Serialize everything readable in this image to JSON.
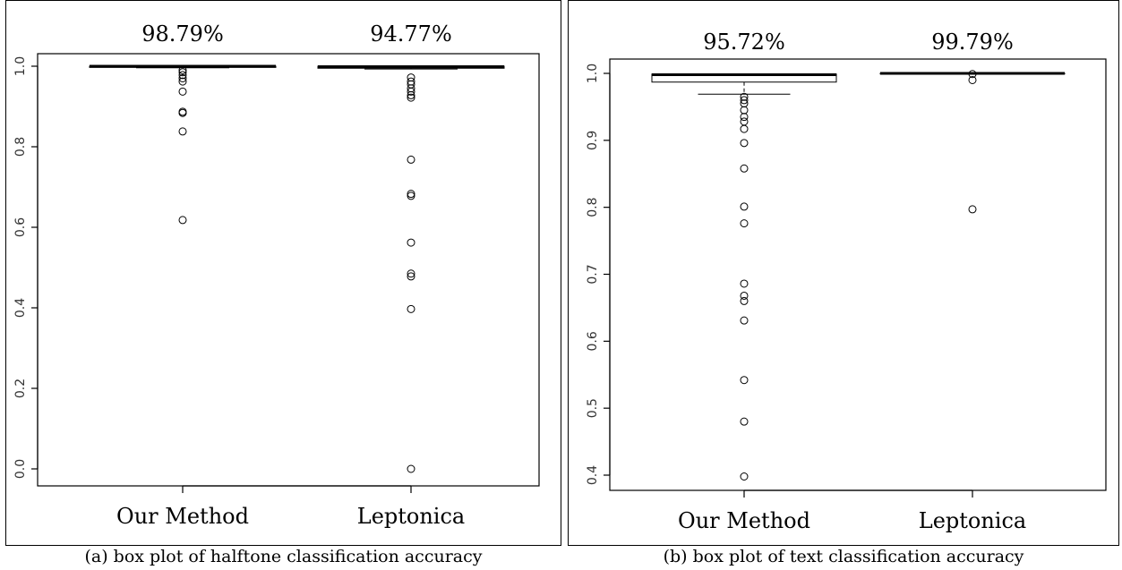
{
  "chart_data": [
    {
      "type": "boxplot",
      "caption": "(a) box plot of halftone classification accuracy",
      "categories": [
        "Our Method",
        "Leptonica"
      ],
      "annotations": [
        "98.79%",
        "94.77%"
      ],
      "ylim": [
        0.0,
        1.0
      ],
      "yticks": [
        "0.0",
        "0.2",
        "0.4",
        "0.6",
        "0.8",
        "1.0"
      ],
      "boxes": [
        {
          "q1": 0.997,
          "median": 1.0,
          "q3": 1.0,
          "whisker_low": 0.996,
          "whisker_high": 1.0,
          "outliers": [
            0.99,
            0.985,
            0.978,
            0.97,
            0.962,
            0.937,
            0.887,
            0.884,
            0.838,
            0.618
          ]
        },
        {
          "q1": 0.995,
          "median": 0.999,
          "q3": 1.0,
          "whisker_low": 0.993,
          "whisker_high": 1.0,
          "outliers": [
            0.972,
            0.962,
            0.955,
            0.945,
            0.937,
            0.928,
            0.922,
            0.768,
            0.683,
            0.678,
            0.562,
            0.485,
            0.478,
            0.397,
            0.0
          ]
        }
      ]
    },
    {
      "type": "boxplot",
      "caption": "(b) box plot of text classification accuracy",
      "categories": [
        "Our Method",
        "Leptonica"
      ],
      "annotations": [
        "95.72%",
        "99.79%"
      ],
      "ylim": [
        0.4,
        1.0
      ],
      "yticks": [
        "0.4",
        "0.5",
        "0.6",
        "0.7",
        "0.8",
        "0.9",
        "1.0"
      ],
      "boxes": [
        {
          "q1": 0.987,
          "median": 0.998,
          "q3": 0.999,
          "whisker_low": 0.969,
          "whisker_high": 1.0,
          "outliers": [
            0.965,
            0.96,
            0.955,
            0.945,
            0.935,
            0.928,
            0.917,
            0.896,
            0.858,
            0.801,
            0.776,
            0.686,
            0.668,
            0.66,
            0.631,
            0.542,
            0.48,
            0.398
          ]
        },
        {
          "q1": 1.0,
          "median": 1.0,
          "q3": 1.0,
          "whisker_low": 1.0,
          "whisker_high": 1.0,
          "outliers": [
            0.999,
            0.99,
            0.797
          ]
        }
      ]
    }
  ]
}
